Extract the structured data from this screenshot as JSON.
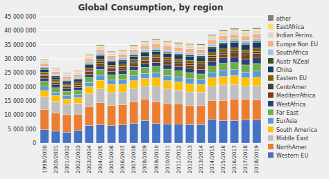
{
  "chart_data": {
    "type": "bar",
    "title": "Global Consumption, by region",
    "stacked": true,
    "grid": true,
    "legend": "right",
    "categories": [
      "1999/2000",
      "2000/2001",
      "2001/2002",
      "2002/2003",
      "2003/2004",
      "2004/2005",
      "2005/2006",
      "2006/2007",
      "2007/2008",
      "2008/2009",
      "2009/2010",
      "2010/2011",
      "2011/2012",
      "2012/2013",
      "2013/2014",
      "2014/2015",
      "2015/2016",
      "2016/2017",
      "2017/2018",
      "2018/2019"
    ],
    "ylim": [
      0,
      45000000
    ],
    "yticks": [
      0,
      {
        "value": 5000000,
        "label": "5 000 000"
      },
      {
        "value": 10000000,
        "label": "10 000 000"
      },
      {
        "value": 15000000,
        "label": "15 000 000"
      },
      {
        "value": 20000000,
        "label": "20 000 000"
      },
      {
        "value": 25000000,
        "label": "25 000 000"
      },
      {
        "value": 30000000,
        "label": "30 000 000"
      },
      {
        "value": 35000000,
        "label": "35 000 000"
      },
      {
        "value": 40000000,
        "label": "40 000 000"
      },
      {
        "value": 45000000,
        "label": "45 000 000"
      }
    ],
    "series": [
      {
        "name": "Western EU",
        "color": "#4472C4",
        "values": [
          4800000,
          4200000,
          3900000,
          4500000,
          6300000,
          6500000,
          6200000,
          6500000,
          7000000,
          8000000,
          7000000,
          6800000,
          6700000,
          6600000,
          6600000,
          8500000,
          8000000,
          8000000,
          8300000,
          8200000
        ]
      },
      {
        "name": "NorthAmer",
        "color": "#ED7D31",
        "values": [
          7200000,
          6500000,
          6200000,
          5800000,
          6700000,
          7800000,
          7200000,
          7200000,
          7700000,
          7700000,
          7700000,
          7200000,
          7200000,
          6700000,
          6700000,
          6700000,
          7200000,
          7700000,
          7200000,
          7200000
        ]
      },
      {
        "name": "Middle East",
        "color": "#BFBFBF",
        "values": [
          4500000,
          4200000,
          3800000,
          3900000,
          4500000,
          5000000,
          4500000,
          4500000,
          4800000,
          4600000,
          5500000,
          5200000,
          5000000,
          4900000,
          4800000,
          5000000,
          5500000,
          5000000,
          4700000,
          5000000
        ]
      },
      {
        "name": "South America",
        "color": "#FFC000",
        "values": [
          2200000,
          2000000,
          1800000,
          2000000,
          2600000,
          3000000,
          3000000,
          2700000,
          2700000,
          2700000,
          3000000,
          3000000,
          2900000,
          2900000,
          2700000,
          3000000,
          3000000,
          3300000,
          3000000,
          3000000
        ]
      },
      {
        "name": "EurAsia",
        "color": "#5B9BD5",
        "values": [
          1500000,
          1200000,
          1200000,
          1100000,
          1500000,
          1800000,
          1500000,
          1600000,
          1700000,
          1800000,
          1800000,
          1800000,
          1700000,
          1800000,
          1700000,
          1900000,
          2200000,
          2100000,
          2000000,
          2200000
        ]
      },
      {
        "name": "Far East",
        "color": "#70AD47",
        "values": [
          1800000,
          1600000,
          1500000,
          1500000,
          1800000,
          2100000,
          1900000,
          2000000,
          2100000,
          2200000,
          2300000,
          2300000,
          2200000,
          2200000,
          2100000,
          2300000,
          2500000,
          2500000,
          2600000,
          2700000
        ]
      },
      {
        "name": "WestAfrica",
        "color": "#264478",
        "values": [
          1100000,
          1000000,
          900000,
          950000,
          1100000,
          1200000,
          1100000,
          1200000,
          1200000,
          1300000,
          1400000,
          1500000,
          1500000,
          1500000,
          1600000,
          1800000,
          2000000,
          2100000,
          2100000,
          2200000
        ]
      },
      {
        "name": "MediterrAfrica",
        "color": "#843C0C",
        "values": [
          900000,
          800000,
          750000,
          800000,
          900000,
          1000000,
          950000,
          950000,
          1000000,
          1050000,
          1100000,
          1100000,
          1100000,
          1150000,
          1200000,
          1250000,
          1300000,
          1400000,
          1400000,
          1400000
        ]
      },
      {
        "name": "CentrAmer",
        "color": "#404040",
        "values": [
          500000,
          450000,
          430000,
          460000,
          520000,
          560000,
          540000,
          550000,
          570000,
          590000,
          620000,
          630000,
          640000,
          650000,
          660000,
          690000,
          720000,
          750000,
          760000,
          770000
        ]
      },
      {
        "name": "Eastern EU",
        "color": "#7F6000",
        "values": [
          750000,
          680000,
          630000,
          680000,
          800000,
          870000,
          840000,
          870000,
          900000,
          930000,
          950000,
          960000,
          970000,
          980000,
          1000000,
          1020000,
          1050000,
          1080000,
          1090000,
          1100000
        ]
      },
      {
        "name": "China",
        "color": "#1F3864",
        "values": [
          1000000,
          930000,
          870000,
          930000,
          1100000,
          1180000,
          1140000,
          1170000,
          1200000,
          1250000,
          1300000,
          1370000,
          1370000,
          1430000,
          1500000,
          1620000,
          1750000,
          1800000,
          1870000,
          1930000
        ]
      },
      {
        "name": "Austr NZeal",
        "color": "#375623",
        "values": [
          380000,
          350000,
          340000,
          350000,
          390000,
          410000,
          400000,
          410000,
          430000,
          440000,
          450000,
          460000,
          460000,
          470000,
          490000,
          500000,
          510000,
          520000,
          540000,
          550000
        ]
      },
      {
        "name": "SouthAfrica",
        "color": "#9DC3E6",
        "values": [
          620000,
          560000,
          520000,
          550000,
          650000,
          700000,
          670000,
          700000,
          720000,
          750000,
          770000,
          800000,
          810000,
          820000,
          850000,
          880000,
          900000,
          940000,
          950000,
          970000
        ]
      },
      {
        "name": "Europe Non EU",
        "color": "#F4B183",
        "values": [
          1100000,
          1000000,
          960000,
          990000,
          1170000,
          1260000,
          1210000,
          1240000,
          1300000,
          1360000,
          1380000,
          1410000,
          1420000,
          1430000,
          1460000,
          1490000,
          1540000,
          1580000,
          1610000,
          1630000
        ]
      },
      {
        "name": "Indian Perins.",
        "color": "#D9D9D9",
        "values": [
          750000,
          680000,
          650000,
          670000,
          800000,
          850000,
          820000,
          850000,
          870000,
          900000,
          920000,
          950000,
          960000,
          970000,
          1000000,
          1020000,
          1060000,
          1080000,
          1110000,
          1130000
        ]
      },
      {
        "name": "EastAfrica",
        "color": "#FFD966",
        "values": [
          370000,
          340000,
          320000,
          340000,
          400000,
          430000,
          410000,
          430000,
          440000,
          450000,
          460000,
          470000,
          490000,
          500000,
          510000,
          530000,
          540000,
          550000,
          560000,
          580000
        ]
      },
      {
        "name": "other",
        "color": "#808080",
        "values": [
          250000,
          230000,
          220000,
          230000,
          270000,
          290000,
          280000,
          290000,
          300000,
          320000,
          330000,
          340000,
          350000,
          360000,
          370000,
          390000,
          400000,
          420000,
          430000,
          440000
        ]
      }
    ]
  }
}
